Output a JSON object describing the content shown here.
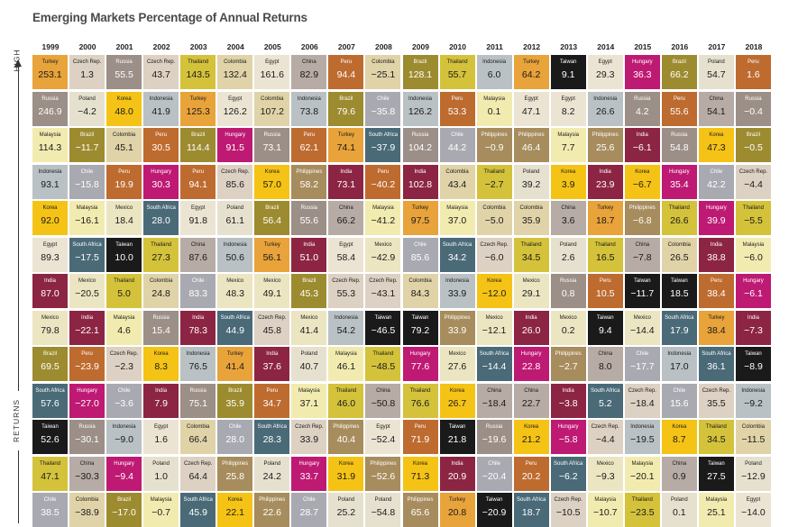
{
  "title": "Emerging Markets Percentage of Annual Returns",
  "axis": {
    "high": "HIGH",
    "returns": "RETURNS"
  },
  "colors": {
    "Turkey": "#e8a33a",
    "Czech Rep.": "#ddd1c3",
    "Russia": "#9c8f87",
    "Thailand": "#d4c23b",
    "Colombia": "#e0d3a8",
    "Egypt": "#ece4d3",
    "China": "#b7aba5",
    "Peru": "#be6b30",
    "Brazil": "#9d8b30",
    "Indonesia": "#b9c1c4",
    "Taiwan": "#1a1a1a",
    "Hungary": "#be1a73",
    "Poland": "#e6e1cf",
    "Korea": "#f5c315",
    "Chile": "#a9aab1",
    "Philippines": "#a78c5d",
    "Malaysia": "#f2ebb0",
    "India": "#8c2543",
    "Mexico": "#ece5c2",
    "South Africa": "#4a6a78"
  },
  "text_colors": {
    "Turkey": "#1a1a1a",
    "Czech Rep.": "#1a1a1a",
    "Russia": "#ffffff",
    "Thailand": "#1a1a1a",
    "Colombia": "#1a1a1a",
    "Egypt": "#1a1a1a",
    "China": "#1a1a1a",
    "Peru": "#ffffff",
    "Brazil": "#ffffff",
    "Indonesia": "#1a1a1a",
    "Taiwan": "#ffffff",
    "Hungary": "#ffffff",
    "Poland": "#1a1a1a",
    "Korea": "#1a1a1a",
    "Chile": "#ffffff",
    "Philippines": "#ffffff",
    "Malaysia": "#1a1a1a",
    "India": "#ffffff",
    "Mexico": "#1a1a1a",
    "South Africa": "#ffffff"
  },
  "chart_data": {
    "type": "table",
    "title": "Emerging Markets Percentage of Annual Returns",
    "years": [
      "1999",
      "2000",
      "2001",
      "2002",
      "2003",
      "2004",
      "2005",
      "2006",
      "2007",
      "2008",
      "2009",
      "2010",
      "2011",
      "2012",
      "2013",
      "2014",
      "2015",
      "2016",
      "2017",
      "2018"
    ],
    "rows": [
      [
        [
          "Turkey",
          "253.1"
        ],
        [
          "Czech Rep.",
          "1.3"
        ],
        [
          "Russia",
          "55.5"
        ],
        [
          "Czech Rep.",
          "43.7"
        ],
        [
          "Thailand",
          "143.5"
        ],
        [
          "Colombia",
          "132.4"
        ],
        [
          "Egypt",
          "161.6"
        ],
        [
          "China",
          "82.9"
        ],
        [
          "Peru",
          "94.4"
        ],
        [
          "Colombia",
          "−25.1"
        ],
        [
          "Brazil",
          "128.1"
        ],
        [
          "Thailand",
          "55.7"
        ],
        [
          "Indonesia",
          "6.0"
        ],
        [
          "Turkey",
          "64.2"
        ],
        [
          "Taiwan",
          "9.1"
        ],
        [
          "Egypt",
          "29.3"
        ],
        [
          "Hungary",
          "36.3"
        ],
        [
          "Brazil",
          "66.2"
        ],
        [
          "Poland",
          "54.7"
        ],
        [
          "Peru",
          "1.6"
        ]
      ],
      [
        [
          "Russia",
          "246.9"
        ],
        [
          "Poland",
          "−4.2"
        ],
        [
          "Korea",
          "48.0"
        ],
        [
          "Indonesia",
          "41.9"
        ],
        [
          "Turkey",
          "125.3"
        ],
        [
          "Egypt",
          "126.2"
        ],
        [
          "Colombia",
          "107.2"
        ],
        [
          "Indonesia",
          "73.8"
        ],
        [
          "Brazil",
          "79.6"
        ],
        [
          "Chile",
          "−35.8"
        ],
        [
          "Indonesia",
          "126.2"
        ],
        [
          "Peru",
          "53.3"
        ],
        [
          "Malaysia",
          "0.1"
        ],
        [
          "Egypt",
          "47.1"
        ],
        [
          "Egypt",
          "8.2"
        ],
        [
          "Indonesia",
          "26.6"
        ],
        [
          "Russia",
          "4.2"
        ],
        [
          "Peru",
          "55.6"
        ],
        [
          "China",
          "54.1"
        ],
        [
          "Russia",
          "−0.4"
        ]
      ],
      [
        [
          "Malaysia",
          "114.3"
        ],
        [
          "Brazil",
          "−11.7"
        ],
        [
          "Colombia",
          "45.1"
        ],
        [
          "Peru",
          "30.5"
        ],
        [
          "Brazil",
          "114.4"
        ],
        [
          "Hungary",
          "91.5"
        ],
        [
          "Russia",
          "73.1"
        ],
        [
          "Peru",
          "62.1"
        ],
        [
          "Turkey",
          "74.1"
        ],
        [
          "South Africa",
          "−37.9"
        ],
        [
          "Russia",
          "104.2"
        ],
        [
          "Chile",
          "44.2"
        ],
        [
          "Philippines",
          "−0.9"
        ],
        [
          "Philippines",
          "46.4"
        ],
        [
          "Malaysia",
          "7.7"
        ],
        [
          "Philippines",
          "25.6"
        ],
        [
          "India",
          "−6.1"
        ],
        [
          "Russia",
          "54.8"
        ],
        [
          "Korea",
          "47.3"
        ],
        [
          "Brazil",
          "−0.5"
        ]
      ],
      [
        [
          "Indonesia",
          "93.1"
        ],
        [
          "Chile",
          "−15.8"
        ],
        [
          "Peru",
          "19.9"
        ],
        [
          "Hungary",
          "30.3"
        ],
        [
          "Peru",
          "94.1"
        ],
        [
          "Czech Rep.",
          "85.6"
        ],
        [
          "Korea",
          "57.0"
        ],
        [
          "Philippines",
          "58.2"
        ],
        [
          "India",
          "73.1"
        ],
        [
          "Peru",
          "−40.2"
        ],
        [
          "India",
          "102.8"
        ],
        [
          "Colombia",
          "43.4"
        ],
        [
          "Thailand",
          "−2.7"
        ],
        [
          "Poland",
          "39.2"
        ],
        [
          "Korea",
          "3.9"
        ],
        [
          "India",
          "23.9"
        ],
        [
          "Korea",
          "−6.7"
        ],
        [
          "Hungary",
          "35.4"
        ],
        [
          "Chile",
          "42.2"
        ],
        [
          "Czech Rep.",
          "−4.4"
        ]
      ],
      [
        [
          "Korea",
          "92.0"
        ],
        [
          "Malaysia",
          "−16.1"
        ],
        [
          "Mexico",
          "18.4"
        ],
        [
          "South Africa",
          "28.0"
        ],
        [
          "Egypt",
          "91.8"
        ],
        [
          "Poland",
          "61.1"
        ],
        [
          "Brazil",
          "56.4"
        ],
        [
          "Russia",
          "55.6"
        ],
        [
          "China",
          "66.2"
        ],
        [
          "Malaysia",
          "−41.2"
        ],
        [
          "Turkey",
          "97.5"
        ],
        [
          "Malaysia",
          "37.0"
        ],
        [
          "Colombia",
          "−5.0"
        ],
        [
          "Colombia",
          "35.9"
        ],
        [
          "China",
          "3.6"
        ],
        [
          "Turkey",
          "18.7"
        ],
        [
          "Philippines",
          "−6.8"
        ],
        [
          "Thailand",
          "26.6"
        ],
        [
          "Hungary",
          "39.9"
        ],
        [
          "Thailand",
          "−5.5"
        ]
      ],
      [
        [
          "Egypt",
          "89.3"
        ],
        [
          "South Africa",
          "−17.5"
        ],
        [
          "Taiwan",
          "10.0"
        ],
        [
          "Thailand",
          "27.3"
        ],
        [
          "China",
          "87.6"
        ],
        [
          "Indonesia",
          "50.6"
        ],
        [
          "Turkey",
          "56.1"
        ],
        [
          "India",
          "51.0"
        ],
        [
          "Egypt",
          "58.4"
        ],
        [
          "Mexico",
          "−42.9"
        ],
        [
          "Chile",
          "85.6"
        ],
        [
          "South Africa",
          "34.2"
        ],
        [
          "Czech Rep.",
          "−6.0"
        ],
        [
          "Thailand",
          "34.5"
        ],
        [
          "Poland",
          "2.6"
        ],
        [
          "Thailand",
          "16.5"
        ],
        [
          "China",
          "−7.8"
        ],
        [
          "Colombia",
          "26.5"
        ],
        [
          "India",
          "38.8"
        ],
        [
          "Malaysia",
          "−6.0"
        ]
      ],
      [
        [
          "India",
          "87.0"
        ],
        [
          "Mexico",
          "−20.5"
        ],
        [
          "Thailand",
          "5.0"
        ],
        [
          "Colombia",
          "24.8"
        ],
        [
          "Chile",
          "83.3"
        ],
        [
          "Mexico",
          "48.3"
        ],
        [
          "Mexico",
          "49.1"
        ],
        [
          "Brazil",
          "45.3"
        ],
        [
          "Czech Rep.",
          "55.3"
        ],
        [
          "Czech Rep.",
          "−43.1"
        ],
        [
          "Colombia",
          "84.3"
        ],
        [
          "Indonesia",
          "33.9"
        ],
        [
          "Korea",
          "−12.0"
        ],
        [
          "Mexico",
          "29.1"
        ],
        [
          "Russia",
          "0.8"
        ],
        [
          "Peru",
          "10.5"
        ],
        [
          "Taiwan",
          "−11.7"
        ],
        [
          "Taiwan",
          "18.5"
        ],
        [
          "Peru",
          "38.4"
        ],
        [
          "Hungary",
          "−6.1"
        ]
      ],
      [
        [
          "Mexico",
          "79.8"
        ],
        [
          "India",
          "−22.1"
        ],
        [
          "Malaysia",
          "4.6"
        ],
        [
          "Russia",
          "15.4"
        ],
        [
          "India",
          "78.3"
        ],
        [
          "South Africa",
          "44.9"
        ],
        [
          "Czech Rep.",
          "45.8"
        ],
        [
          "Mexico",
          "41.4"
        ],
        [
          "Indonesia",
          "54.2"
        ],
        [
          "Taiwan",
          "−46.5"
        ],
        [
          "Taiwan",
          "79.2"
        ],
        [
          "Philippines",
          "33.9"
        ],
        [
          "Mexico",
          "−12.1"
        ],
        [
          "India",
          "26.0"
        ],
        [
          "Mexico",
          "0.2"
        ],
        [
          "Taiwan",
          "9.4"
        ],
        [
          "Mexico",
          "−14.4"
        ],
        [
          "South Africa",
          "17.9"
        ],
        [
          "Turkey",
          "38.4"
        ],
        [
          "India",
          "−7.3"
        ]
      ],
      [
        [
          "Brazil",
          "69.5"
        ],
        [
          "Peru",
          "−23.9"
        ],
        [
          "Czech Rep.",
          "−2.3"
        ],
        [
          "Korea",
          "8.3"
        ],
        [
          "Indonesia",
          "76.5"
        ],
        [
          "Turkey",
          "41.4"
        ],
        [
          "India",
          "37.6"
        ],
        [
          "Poland",
          "40.7"
        ],
        [
          "Malaysia",
          "46.1"
        ],
        [
          "Thailand",
          "−48.5"
        ],
        [
          "Hungary",
          "77.6"
        ],
        [
          "Mexico",
          "27.6"
        ],
        [
          "South Africa",
          "−14.4"
        ],
        [
          "Hungary",
          "22.8"
        ],
        [
          "Philippines",
          "−2.7"
        ],
        [
          "China",
          "8.0"
        ],
        [
          "Chile",
          "−17.7"
        ],
        [
          "Indonesia",
          "17.0"
        ],
        [
          "South Africa",
          "36.1"
        ],
        [
          "Taiwan",
          "−8.9"
        ]
      ],
      [
        [
          "South Africa",
          "57.6"
        ],
        [
          "Hungary",
          "−27.0"
        ],
        [
          "Chile",
          "−3.6"
        ],
        [
          "India",
          "7.9"
        ],
        [
          "Russia",
          "75.1"
        ],
        [
          "Brazil",
          "35.9"
        ],
        [
          "Peru",
          "34.7"
        ],
        [
          "Malaysia",
          "37.1"
        ],
        [
          "Thailand",
          "46.0"
        ],
        [
          "China",
          "−50.8"
        ],
        [
          "Thailand",
          "76.6"
        ],
        [
          "Korea",
          "26.7"
        ],
        [
          "China",
          "−18.4"
        ],
        [
          "China",
          "22.7"
        ],
        [
          "India",
          "−3.8"
        ],
        [
          "South Africa",
          "5.2"
        ],
        [
          "Czech Rep.",
          "−18.4"
        ],
        [
          "Chile",
          "15.6"
        ],
        [
          "Czech Rep.",
          "35.5"
        ],
        [
          "Indonesia",
          "−9.2"
        ]
      ],
      [
        [
          "Taiwan",
          "52.6"
        ],
        [
          "Russia",
          "−30.1"
        ],
        [
          "Indonesia",
          "−9.0"
        ],
        [
          "Egypt",
          "1.6"
        ],
        [
          "Colombia",
          "66.4"
        ],
        [
          "Chile",
          "28.0"
        ],
        [
          "South Africa",
          "28.3"
        ],
        [
          "Czech Rep.",
          "33.9"
        ],
        [
          "Philippines",
          "40.4"
        ],
        [
          "Egypt",
          "−52.4"
        ],
        [
          "Peru",
          "71.9"
        ],
        [
          "Taiwan",
          "21.8"
        ],
        [
          "Russia",
          "−19.6"
        ],
        [
          "Korea",
          "21.2"
        ],
        [
          "Hungary",
          "−5.8"
        ],
        [
          "Czech Rep.",
          "−4.4"
        ],
        [
          "Indonesia",
          "−19.5"
        ],
        [
          "Korea",
          "8.7"
        ],
        [
          "Thailand",
          "34.5"
        ],
        [
          "Colombia",
          "−11.5"
        ]
      ],
      [
        [
          "Thailand",
          "47.1"
        ],
        [
          "China",
          "−30.3"
        ],
        [
          "Hungary",
          "−9.4"
        ],
        [
          "Poland",
          "1.0"
        ],
        [
          "Czech Rep.",
          "64.4"
        ],
        [
          "Philippines",
          "25.8"
        ],
        [
          "Poland",
          "24.2"
        ],
        [
          "Hungary",
          "33.7"
        ],
        [
          "Korea",
          "31.9"
        ],
        [
          "Philippines",
          "−52.6"
        ],
        [
          "Korea",
          "71.3"
        ],
        [
          "India",
          "20.9"
        ],
        [
          "Chile",
          "−20.4"
        ],
        [
          "Peru",
          "20.2"
        ],
        [
          "South Africa",
          "−6.2"
        ],
        [
          "Mexico",
          "−9.3"
        ],
        [
          "Malaysia",
          "−20.1"
        ],
        [
          "China",
          "0.9"
        ],
        [
          "Taiwan",
          "27.5"
        ],
        [
          "Poland",
          "−12.9"
        ]
      ],
      [
        [
          "Chile",
          "38.5"
        ],
        [
          "Colombia",
          "−38.9"
        ],
        [
          "Brazil",
          "−17.0"
        ],
        [
          "Malaysia",
          "−0.7"
        ],
        [
          "South Africa",
          "45.9"
        ],
        [
          "Korea",
          "22.1"
        ],
        [
          "Philippines",
          "22.6"
        ],
        [
          "Chile",
          "28.7"
        ],
        [
          "Poland",
          "25.2"
        ],
        [
          "Poland",
          "−54.8"
        ],
        [
          "Philippines",
          "65.6"
        ],
        [
          "Turkey",
          "20.8"
        ],
        [
          "Taiwan",
          "−20.9"
        ],
        [
          "South Africa",
          "18.7"
        ],
        [
          "Czech Rep.",
          "−10.5"
        ],
        [
          "Malaysia",
          "−10.7"
        ],
        [
          "Thailand",
          "−23.5"
        ],
        [
          "Poland",
          "0.1"
        ],
        [
          "Malaysia",
          "25.1"
        ],
        [
          "Egypt",
          "−14.0"
        ]
      ]
    ]
  }
}
